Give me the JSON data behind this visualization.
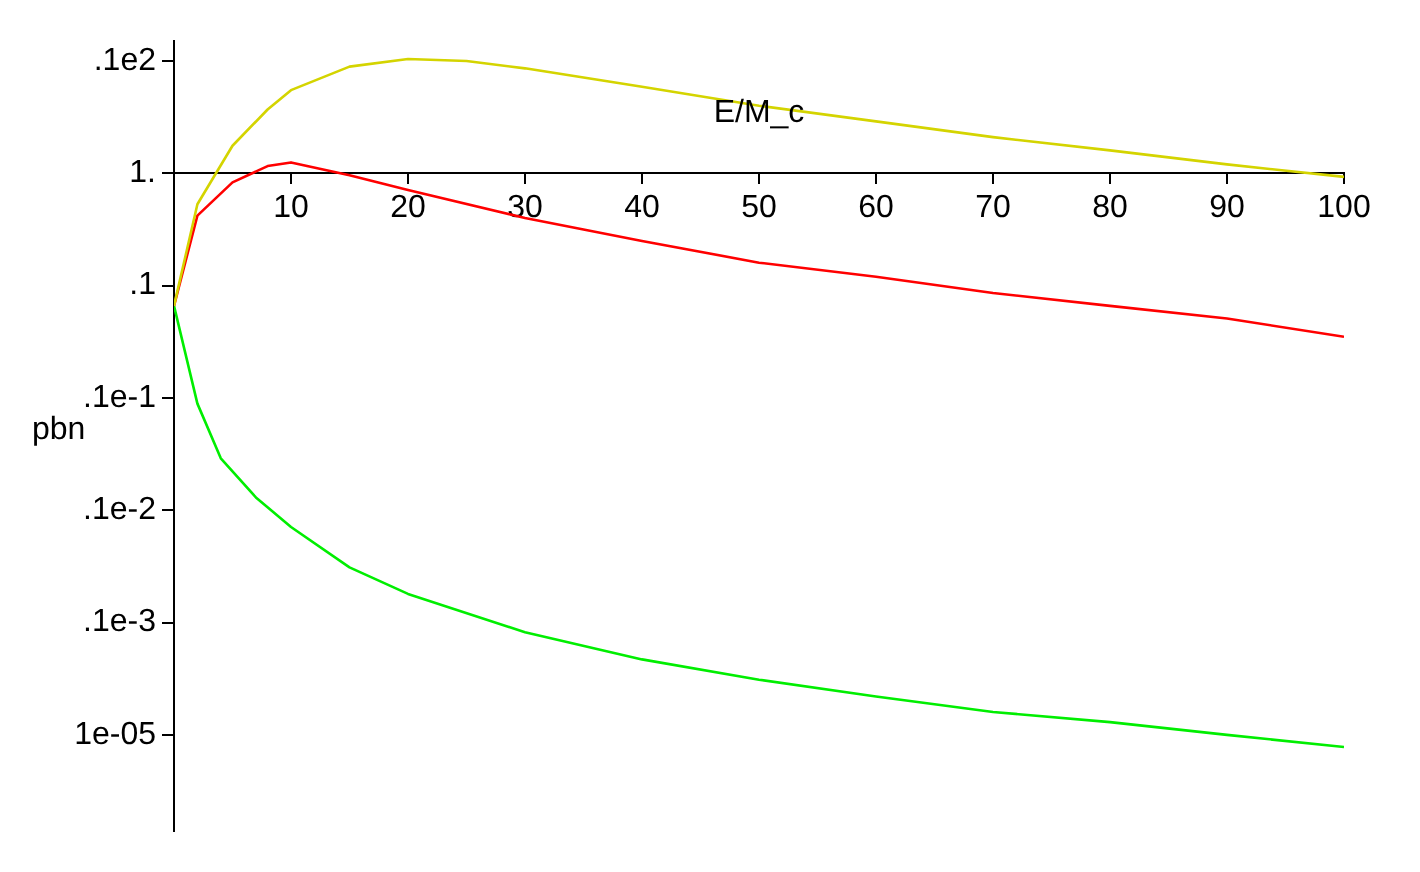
{
  "chart_data": {
    "type": "line",
    "xlabel": "E/M_c",
    "ylabel": "pbn",
    "log": "y",
    "grid": false,
    "legend": false,
    "marker": "none",
    "line_style": "solid",
    "xlim": [
      0,
      100
    ],
    "xticks": [
      10,
      20,
      30,
      40,
      50,
      60,
      70,
      80,
      90,
      100
    ],
    "ylim": [
      1.4e-06,
      15
    ],
    "yticks": [
      {
        "value": 10,
        "label": ".1e2"
      },
      {
        "value": 1,
        "label": "1."
      },
      {
        "value": 0.1,
        "label": ".1"
      },
      {
        "value": 0.01,
        "label": ".1e-1"
      },
      {
        "value": 0.001,
        "label": ".1e-2"
      },
      {
        "value": 0.0001,
        "label": ".1e-3"
      },
      {
        "value": 1e-05,
        "label": "1e-05"
      }
    ],
    "series": [
      {
        "color": "#d4d400",
        "x": [
          0,
          2,
          5,
          8,
          10,
          15,
          20,
          25,
          30,
          40,
          50,
          60,
          70,
          80,
          90,
          100
        ],
        "values": [
          0.066,
          0.53,
          1.76,
          3.7,
          5.5,
          8.9,
          10.4,
          10,
          8.6,
          5.9,
          4.0,
          2.9,
          2.1,
          1.6,
          1.2,
          0.93
        ]
      },
      {
        "color": "#ff0000",
        "x": [
          0,
          2,
          5,
          8,
          10,
          15,
          20,
          30,
          40,
          50,
          60,
          70,
          80,
          90,
          100
        ],
        "values": [
          0.066,
          0.42,
          0.83,
          1.16,
          1.25,
          0.96,
          0.71,
          0.4,
          0.25,
          0.16,
          0.12,
          0.086,
          0.066,
          0.051,
          0.035
        ]
      },
      {
        "color": "#00ee00",
        "x": [
          0,
          2,
          4,
          7,
          10,
          15,
          20,
          30,
          40,
          50,
          60,
          70,
          80,
          90,
          100
        ],
        "values": [
          0.066,
          0.0089,
          0.0029,
          0.0013,
          0.00071,
          0.00031,
          0.00018,
          8.2e-05,
          4.7e-05,
          3.1e-05,
          2.2e-05,
          1.6e-05,
          1.3e-05,
          1e-05,
          7.8e-06
        ]
      }
    ]
  }
}
